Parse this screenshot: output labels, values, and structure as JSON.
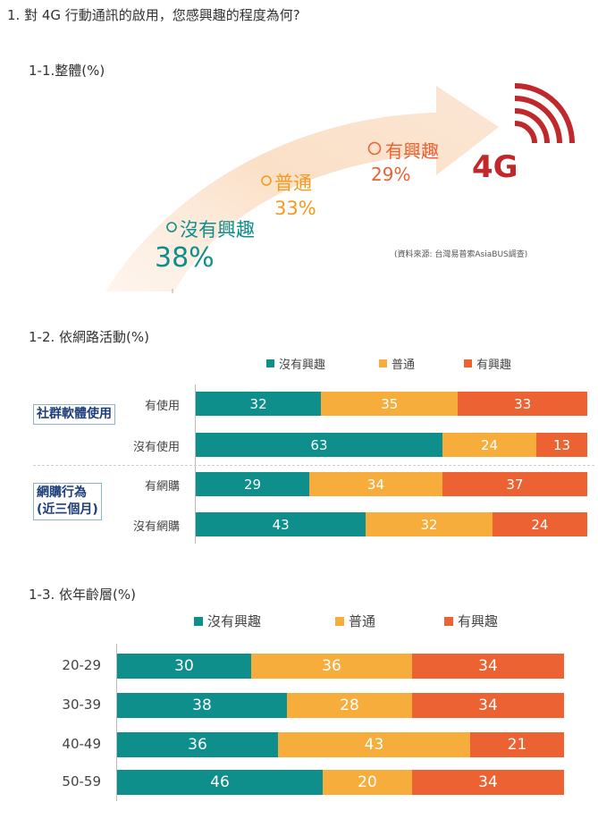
{
  "question_title": "1.  對 4G 行動通訊的啟用，您感興趣的程度為何?",
  "colors": {
    "teal": "#0e8f8c",
    "orange": "#f7ad3b",
    "red": "#ec6233",
    "brand_red": "#c0282b",
    "arrow": "#fbe4d1"
  },
  "section1": {
    "title": "1-1.整體(%)",
    "logo_text": "4G",
    "source_note": "(資料來源: 台灣易普索AsiaBUS調查)",
    "items": [
      {
        "label": "沒有興趣",
        "value_text": "38%"
      },
      {
        "label": "普通",
        "value_text": "33%"
      },
      {
        "label": "有興趣",
        "value_text": "29%"
      }
    ]
  },
  "section2": {
    "title": "1-2. 依網路活動(%)"
  },
  "section3": {
    "title": "1-3. 依年齡層(%)"
  },
  "chart_data": [
    {
      "type": "pie",
      "title": "1-1.整體(%)",
      "categories": [
        "沒有興趣",
        "普通",
        "有興趣"
      ],
      "values": [
        38,
        33,
        29
      ]
    },
    {
      "type": "bar",
      "stacked": true,
      "orientation": "horizontal",
      "title": "1-2. 依網路活動(%)",
      "groups": [
        {
          "label": "社群軟體使用",
          "categories": [
            "有使用",
            "沒有使用"
          ]
        },
        {
          "label": "網購行為\n(近三個月)",
          "categories": [
            "有網購",
            "沒有網購"
          ]
        }
      ],
      "categories": [
        "有使用",
        "沒有使用",
        "有網購",
        "沒有網購"
      ],
      "series": [
        {
          "name": "沒有興趣",
          "values": [
            32,
            63,
            29,
            43
          ]
        },
        {
          "name": "普通",
          "values": [
            35,
            24,
            34,
            32
          ]
        },
        {
          "name": "有興趣",
          "values": [
            33,
            13,
            37,
            24
          ]
        }
      ],
      "legend": "top"
    },
    {
      "type": "bar",
      "stacked": true,
      "orientation": "horizontal",
      "title": "1-3. 依年齡層(%)",
      "categories": [
        "20-29",
        "30-39",
        "40-49",
        "50-59"
      ],
      "series": [
        {
          "name": "沒有興趣",
          "values": [
            30,
            38,
            36,
            46
          ]
        },
        {
          "name": "普通",
          "values": [
            36,
            28,
            43,
            20
          ]
        },
        {
          "name": "有興趣",
          "values": [
            34,
            34,
            21,
            34
          ]
        }
      ],
      "legend": "top"
    }
  ]
}
